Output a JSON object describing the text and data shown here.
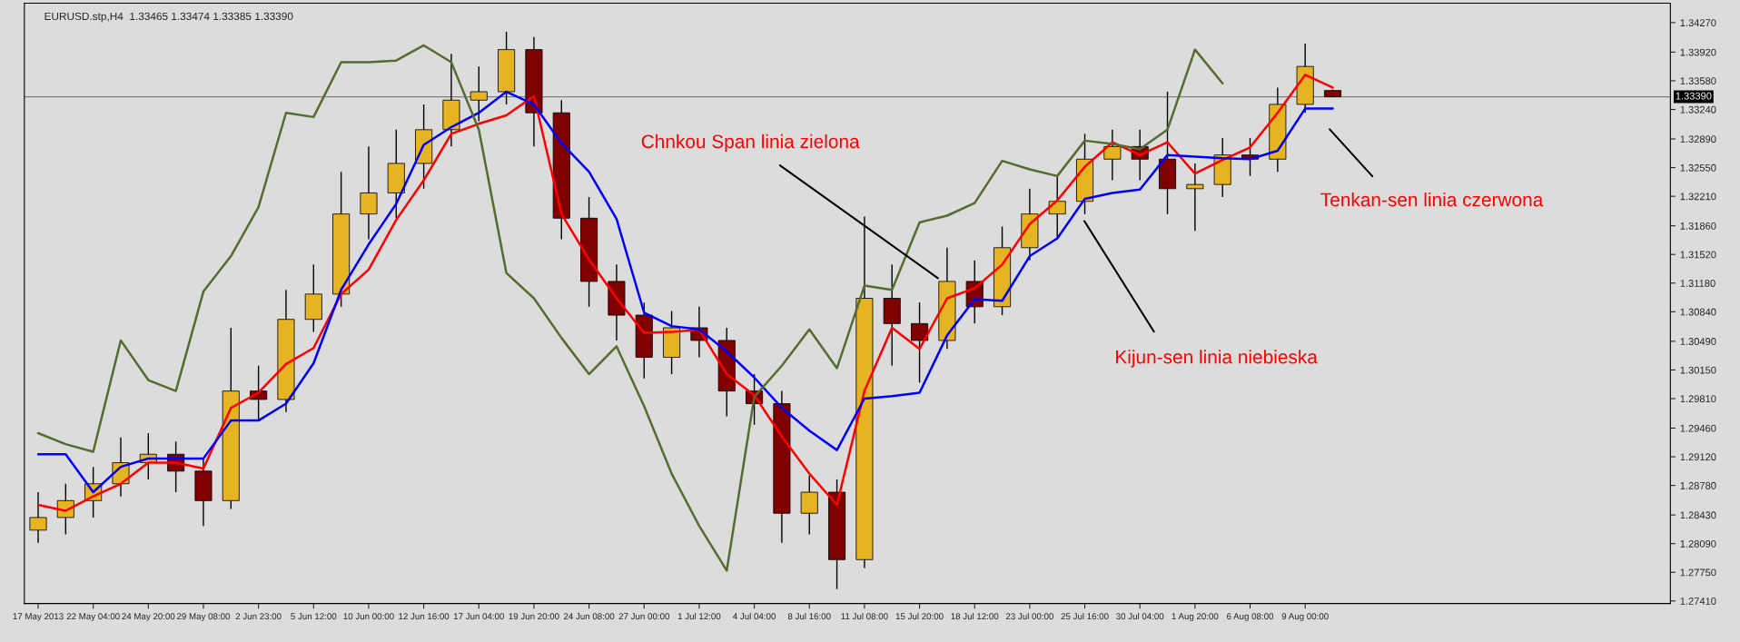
{
  "chart_data": {
    "type": "candlestick",
    "title": "EURUSD.stp,H4  1.33465 1.33474 1.33385 1.33390",
    "categories": [
      "17 May 2013",
      null,
      "22 May 04:00",
      null,
      "24 May 20:00",
      null,
      "29 May 08:00",
      null,
      "2 Jun 23:00",
      null,
      "5 Jun 12:00",
      null,
      "10 Jun 00:00",
      null,
      "12 Jun 16:00",
      null,
      "17 Jun 04:00",
      null,
      "19 Jun 20:00",
      null,
      "24 Jun 08:00",
      null,
      "27 Jun 00:00",
      null,
      "1 Jul 12:00",
      null,
      "4 Jul 04:00",
      null,
      "8 Jul 16:00",
      null,
      "11 Jul 08:00",
      null,
      "15 Jul 20:00",
      null,
      "18 Jul 12:00",
      null,
      "23 Jul 00:00",
      null,
      "25 Jul 16:00",
      null,
      "30 Jul 04:00",
      null,
      "1 Aug 20:00",
      null,
      "6 Aug 08:00",
      null,
      "9 Aug 00:00",
      null
    ],
    "ohlc": [
      [
        1.2825,
        1.287,
        1.281,
        1.284
      ],
      [
        1.284,
        1.288,
        1.282,
        1.286
      ],
      [
        1.286,
        1.29,
        1.284,
        1.288
      ],
      [
        1.288,
        1.2935,
        1.2865,
        1.2905
      ],
      [
        1.2905,
        1.294,
        1.2885,
        1.2915
      ],
      [
        1.2915,
        1.293,
        1.287,
        1.2895
      ],
      [
        1.2895,
        1.291,
        1.283,
        1.286
      ],
      [
        1.286,
        1.3065,
        1.285,
        1.299
      ],
      [
        1.299,
        1.302,
        1.2955,
        1.298
      ],
      [
        1.298,
        1.311,
        1.2965,
        1.3075
      ],
      [
        1.3075,
        1.314,
        1.306,
        1.3105
      ],
      [
        1.3105,
        1.325,
        1.309,
        1.32
      ],
      [
        1.32,
        1.328,
        1.317,
        1.3225
      ],
      [
        1.3225,
        1.33,
        1.3195,
        1.326
      ],
      [
        1.326,
        1.333,
        1.323,
        1.33
      ],
      [
        1.33,
        1.339,
        1.328,
        1.3335
      ],
      [
        1.3335,
        1.3375,
        1.331,
        1.3345
      ],
      [
        1.3345,
        1.3416,
        1.333,
        1.3395
      ],
      [
        1.3395,
        1.341,
        1.328,
        1.332
      ],
      [
        1.332,
        1.3335,
        1.317,
        1.3195
      ],
      [
        1.3195,
        1.322,
        1.309,
        1.312
      ],
      [
        1.312,
        1.314,
        1.305,
        1.308
      ],
      [
        1.308,
        1.3095,
        1.3005,
        1.303
      ],
      [
        1.303,
        1.3085,
        1.301,
        1.3065
      ],
      [
        1.3065,
        1.309,
        1.303,
        1.305
      ],
      [
        1.305,
        1.3065,
        1.296,
        1.299
      ],
      [
        1.299,
        1.301,
        1.295,
        1.2975
      ],
      [
        1.2975,
        1.299,
        1.281,
        1.2845
      ],
      [
        1.2845,
        1.289,
        1.282,
        1.287
      ],
      [
        1.287,
        1.2885,
        1.2755,
        1.279
      ],
      [
        1.279,
        1.3197,
        1.278,
        1.31
      ],
      [
        1.31,
        1.314,
        1.302,
        1.307
      ],
      [
        1.307,
        1.3095,
        1.3,
        1.305
      ],
      [
        1.305,
        1.316,
        1.304,
        1.312
      ],
      [
        1.312,
        1.3145,
        1.307,
        1.309
      ],
      [
        1.309,
        1.3185,
        1.308,
        1.316
      ],
      [
        1.316,
        1.323,
        1.3145,
        1.32
      ],
      [
        1.32,
        1.3245,
        1.317,
        1.3215
      ],
      [
        1.3215,
        1.3295,
        1.32,
        1.3265
      ],
      [
        1.3265,
        1.33,
        1.324,
        1.328
      ],
      [
        1.328,
        1.33,
        1.324,
        1.3265
      ],
      [
        1.3265,
        1.3345,
        1.32,
        1.323
      ],
      [
        1.323,
        1.326,
        1.318,
        1.3235
      ],
      [
        1.3235,
        1.329,
        1.322,
        1.327
      ],
      [
        1.327,
        1.329,
        1.3245,
        1.3265
      ],
      [
        1.3265,
        1.335,
        1.325,
        1.333
      ],
      [
        1.333,
        1.3402,
        1.332,
        1.3375
      ],
      [
        1.33465,
        1.33474,
        1.33385,
        1.3339
      ]
    ],
    "colors": [
      "#e6b422",
      "#e6b422",
      "#e6b422",
      "#e6b422",
      "#e6b422",
      "#800000",
      "#800000",
      "#e6b422",
      "#800000",
      "#e6b422",
      "#e6b422",
      "#e6b422",
      "#e6b422",
      "#e6b422",
      "#e6b422",
      "#e6b422",
      "#e6b422",
      "#e6b422",
      "#800000",
      "#800000",
      "#800000",
      "#800000",
      "#800000",
      "#e6b422",
      "#800000",
      "#800000",
      "#800000",
      "#800000",
      "#e6b422",
      "#800000",
      "#e6b422",
      "#800000",
      "#800000",
      "#e6b422",
      "#800000",
      "#e6b422",
      "#e6b422",
      "#e6b422",
      "#e6b422",
      "#e6b422",
      "#800000",
      "#800000",
      "#e6b422",
      "#e6b422",
      "#800000",
      "#e6b422",
      "#e6b422",
      "#800000"
    ],
    "series": [
      {
        "type": "line",
        "color": "#ff0000",
        "values": [
          1.2855,
          1.2848,
          1.2865,
          1.288,
          1.2905,
          1.2905,
          1.2898,
          1.297,
          1.2988,
          1.3022,
          1.3041,
          1.3105,
          1.3134,
          1.3193,
          1.324,
          1.3295,
          1.3307,
          1.3317,
          1.334,
          1.32,
          1.3146,
          1.31,
          1.3059,
          1.306,
          1.3063,
          1.301,
          1.2985,
          1.2936,
          1.2892,
          1.2855,
          1.299,
          1.3065,
          1.304,
          1.31,
          1.3112,
          1.314,
          1.3188,
          1.3216,
          1.3256,
          1.3285,
          1.327,
          1.3285,
          1.3248,
          1.3264,
          1.3279,
          1.332,
          1.3365,
          1.335
        ]
      },
      {
        "type": "line",
        "color": "#0000ff",
        "values": [
          1.2915,
          1.2915,
          1.287,
          1.29,
          1.291,
          1.291,
          1.291,
          1.2955,
          1.2955,
          1.2975,
          1.3023,
          1.311,
          1.3164,
          1.3212,
          1.3282,
          1.3303,
          1.332,
          1.3345,
          1.333,
          1.3284,
          1.325,
          1.3194,
          1.3083,
          1.3067,
          1.3063,
          1.3037,
          1.3006,
          1.297,
          1.2943,
          1.292,
          1.2981,
          1.2984,
          1.2988,
          1.3056,
          1.3099,
          1.3097,
          1.315,
          1.3171,
          1.3218,
          1.3225,
          1.3229,
          1.327,
          1.3268,
          1.3266,
          1.3265,
          1.3275,
          1.3325,
          1.3325
        ]
      },
      {
        "type": "line",
        "color": "#556b2f",
        "values": [
          1.294,
          1.2927,
          1.2918,
          1.305,
          1.3003,
          1.299,
          1.3108,
          1.315,
          1.3208,
          1.332,
          1.3315,
          1.338,
          1.338,
          1.3382,
          1.34,
          1.338,
          1.33,
          1.313,
          1.31,
          1.3053,
          1.301,
          1.3043,
          1.2972,
          1.2892,
          1.283,
          1.2777,
          1.2983,
          1.302,
          1.3063,
          1.3017,
          1.3115,
          1.311,
          1.319,
          1.3198,
          1.3213,
          1.3263,
          1.3253,
          1.3245,
          1.3287,
          1.3283,
          1.3277,
          1.33,
          1.3395,
          1.3355,
          null,
          null,
          null,
          null
        ]
      }
    ],
    "annotations": [
      "Chnkou Span linia zielona",
      "Kijun-sen linia niebieska",
      "Tenkan-sen linia czerwona"
    ],
    "ref_lines": [
      {
        "axis": "y",
        "value": 1.3339,
        "label": "1.33390",
        "color": "#808080"
      }
    ],
    "ylim": [
      1.2738,
      1.345
    ],
    "yticks": [
      {
        "value": 1.2741,
        "label": "1.27410"
      },
      {
        "value": 1.2775,
        "label": "1.27750"
      },
      {
        "value": 1.2809,
        "label": "1.28090"
      },
      {
        "value": 1.2843,
        "label": "1.28430"
      },
      {
        "value": 1.2878,
        "label": "1.28780"
      },
      {
        "value": 1.2912,
        "label": "1.29120"
      },
      {
        "value": 1.2946,
        "label": "1.29460"
      },
      {
        "value": 1.2981,
        "label": "1.29810"
      },
      {
        "value": 1.3015,
        "label": "1.30150"
      },
      {
        "value": 1.3049,
        "label": "1.30490"
      },
      {
        "value": 1.3084,
        "label": "1.30840"
      },
      {
        "value": 1.3118,
        "label": "1.31180"
      },
      {
        "value": 1.3152,
        "label": "1.31520"
      },
      {
        "value": 1.3186,
        "label": "1.31860"
      },
      {
        "value": 1.3221,
        "label": "1.32210"
      },
      {
        "value": 1.3255,
        "label": "1.32550"
      },
      {
        "value": 1.3289,
        "label": "1.32890"
      },
      {
        "value": 1.3324,
        "label": "1.33240"
      },
      {
        "value": 1.3358,
        "label": "1.33580"
      },
      {
        "value": 1.3392,
        "label": "1.33920"
      },
      {
        "value": 1.3427,
        "label": "1.34270"
      }
    ],
    "grid": false,
    "legend": false
  }
}
